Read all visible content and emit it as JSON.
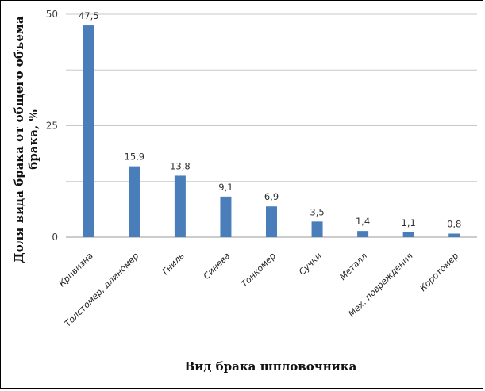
{
  "chart_data": {
    "type": "bar",
    "title": "",
    "xlabel": "Вид брака шпловочника",
    "ylabel_lines": [
      "Доля вида брака от общего объема",
      "брака, %"
    ],
    "ylim": [
      0,
      50
    ],
    "yticks": [
      "0",
      "25",
      "50"
    ],
    "grid": true,
    "bar_color": "#4a7ebb",
    "categories": [
      "Кривизна",
      "Толстомер, длиномер",
      "Гниль",
      "Синева",
      "Тонкомер",
      "Сучки",
      "Металл",
      "Мех. повреждения",
      "Коротомер"
    ],
    "values": [
      47.5,
      15.9,
      13.8,
      9.1,
      6.9,
      3.5,
      1.4,
      1.1,
      0.8
    ],
    "value_labels": [
      "47,5",
      "15,9",
      "13,8",
      "9,1",
      "6,9",
      "3,5",
      "1,4",
      "1,1",
      "0,8"
    ]
  }
}
